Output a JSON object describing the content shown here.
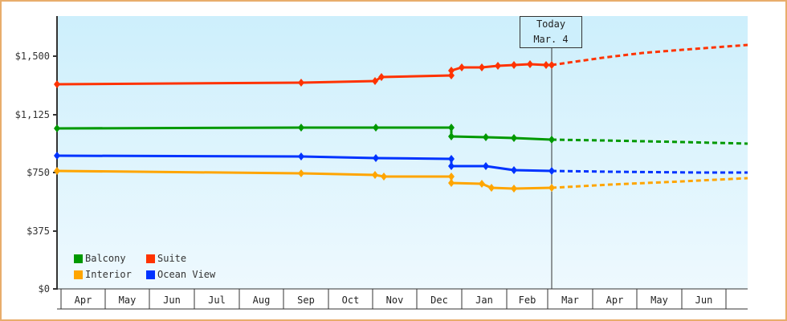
{
  "chart_data": {
    "type": "line",
    "title": "",
    "xlabel": "",
    "ylabel": "",
    "ylim": [
      0,
      1800
    ],
    "y_ticks": [
      "$0",
      "$375",
      "$750",
      "$1,125",
      "$1,500"
    ],
    "x_ticks": [
      "Apr",
      "May",
      "Jun",
      "Jul",
      "Aug",
      "Sep",
      "Oct",
      "Nov",
      "Dec",
      "Jan",
      "Feb",
      "Mar",
      "Apr",
      "May",
      "Jun"
    ],
    "annotation": {
      "label_line1": "Today",
      "label_line2": "Mar. 4"
    },
    "legend": [
      {
        "name": "Balcony",
        "color": "#009900"
      },
      {
        "name": "Suite",
        "color": "#ff3300"
      },
      {
        "name": "Interior",
        "color": "#ffa500"
      },
      {
        "name": "Ocean View",
        "color": "#0033ff"
      }
    ],
    "series": [
      {
        "name": "Suite",
        "color": "#ff3300",
        "history": [
          [
            71,
            105
          ],
          [
            375,
            103
          ],
          [
            467,
            101
          ],
          [
            475,
            96
          ],
          [
            562,
            94
          ],
          [
            562,
            88
          ],
          [
            575,
            84
          ],
          [
            600,
            84
          ],
          [
            620,
            82
          ],
          [
            640,
            81
          ],
          [
            660,
            80
          ],
          [
            680,
            81
          ],
          [
            687,
            81
          ]
        ],
        "forecast": [
          [
            687,
            81
          ],
          [
            750,
            72
          ],
          [
            800,
            66
          ],
          [
            850,
            62
          ],
          [
            931,
            56
          ]
        ]
      },
      {
        "name": "Balcony",
        "color": "#009900",
        "history": [
          [
            71,
            160
          ],
          [
            375,
            159
          ],
          [
            468,
            159
          ],
          [
            562,
            159
          ],
          [
            562,
            170
          ],
          [
            605,
            171
          ],
          [
            640,
            172
          ],
          [
            687,
            174
          ]
        ],
        "forecast": [
          [
            687,
            174
          ],
          [
            750,
            175
          ],
          [
            850,
            177
          ],
          [
            931,
            179
          ]
        ]
      },
      {
        "name": "Ocean View",
        "color": "#0033ff",
        "history": [
          [
            71,
            194
          ],
          [
            375,
            195
          ],
          [
            468,
            197
          ],
          [
            562,
            198
          ],
          [
            562,
            207
          ],
          [
            605,
            207
          ],
          [
            640,
            212
          ],
          [
            687,
            213
          ]
        ],
        "forecast": [
          [
            687,
            213
          ],
          [
            760,
            214
          ],
          [
            870,
            215
          ],
          [
            931,
            215
          ]
        ]
      },
      {
        "name": "Interior",
        "color": "#ffa500",
        "history": [
          [
            71,
            213
          ],
          [
            375,
            216
          ],
          [
            467,
            218
          ],
          [
            478,
            220
          ],
          [
            562,
            220
          ],
          [
            562,
            228
          ],
          [
            600,
            229
          ],
          [
            612,
            234
          ],
          [
            640,
            235
          ],
          [
            687,
            234
          ]
        ],
        "forecast": [
          [
            687,
            234
          ],
          [
            760,
            230
          ],
          [
            850,
            226
          ],
          [
            931,
            222
          ]
        ]
      }
    ]
  }
}
